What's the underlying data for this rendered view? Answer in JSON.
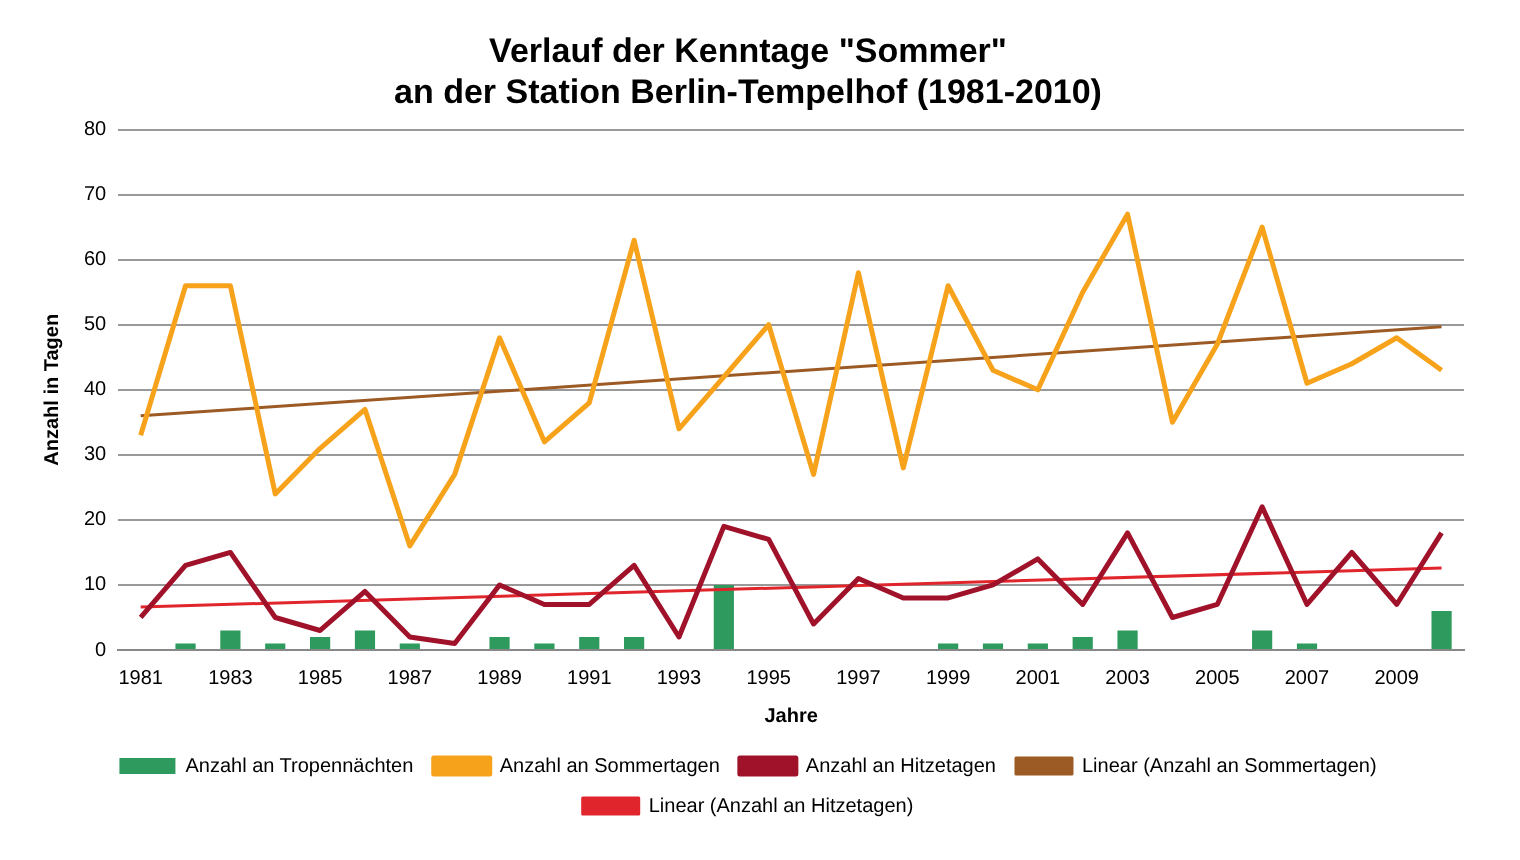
{
  "chart_data": {
    "type": "line",
    "title": "Verlauf der Kenntage \"Sommer\"\nan der Station Berlin-Tempelhof (1981-2010)",
    "xlabel": "Jahre",
    "ylabel": "Anzahl in Tagen",
    "categories": [
      "1981",
      null,
      "1983",
      null,
      "1985",
      null,
      "1987",
      null,
      "1989",
      null,
      "1991",
      null,
      "1993",
      null,
      "1995",
      null,
      "1997",
      null,
      "1999",
      null,
      "2001",
      null,
      "2003",
      null,
      "2005",
      null,
      "2007",
      null,
      "2009",
      null
    ],
    "series": [
      {
        "name": "Anzahl an Tropennächten",
        "type": "bar",
        "color": "#2e9a5e",
        "values": [
          0,
          1,
          3,
          1,
          2,
          3,
          1,
          0,
          2,
          1,
          2,
          2,
          0,
          10,
          0,
          0,
          0,
          0,
          1,
          1,
          1,
          2,
          3,
          0,
          0,
          3,
          1,
          0,
          0,
          6
        ]
      },
      {
        "name": "Anzahl an Sommertagen",
        "color": "#f7a21b",
        "values": [
          33,
          56,
          56,
          24,
          31,
          37,
          16,
          27,
          48,
          32,
          38,
          63,
          34,
          42,
          50,
          27,
          58,
          28,
          56,
          43,
          40,
          55,
          67,
          35,
          47,
          65,
          41,
          44,
          48,
          43
        ]
      },
      {
        "name": "Anzahl an Hitzetagen",
        "color": "#a0122a",
        "values": [
          5,
          13,
          15,
          5,
          3,
          9,
          2,
          1,
          10,
          7,
          7,
          13,
          2,
          19,
          17,
          4,
          11,
          8,
          8,
          10,
          14,
          7,
          18,
          5,
          7,
          22,
          7,
          15,
          7,
          18
        ]
      },
      {
        "name": "Linear (Anzahl an Sommertagen)",
        "type": "line",
        "color": "#9c5a24",
        "values": [
          36,
          null,
          null,
          null,
          null,
          null,
          null,
          null,
          null,
          null,
          null,
          null,
          null,
          null,
          null,
          null,
          null,
          null,
          null,
          null,
          null,
          null,
          null,
          null,
          null,
          null,
          null,
          null,
          null,
          49.7
        ]
      },
      {
        "name": "Linear (Anzahl an Hitzetagen)",
        "type": "line",
        "color": "#e0262c",
        "values": [
          6.6,
          null,
          null,
          null,
          null,
          null,
          null,
          null,
          null,
          null,
          null,
          null,
          null,
          null,
          null,
          null,
          null,
          null,
          null,
          null,
          null,
          null,
          null,
          null,
          null,
          null,
          null,
          null,
          null,
          12.6
        ]
      }
    ],
    "ylim": [
      0,
      80
    ],
    "yticks": [
      0,
      10,
      20,
      30,
      40,
      50,
      60,
      70,
      80
    ],
    "grid": "y",
    "legend": "bottom",
    "marker": "none"
  }
}
